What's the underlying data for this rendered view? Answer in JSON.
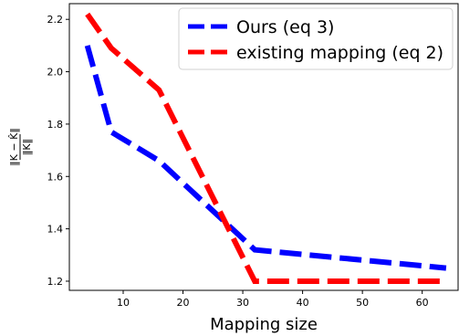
{
  "chart_data": {
    "type": "line",
    "xlabel": "Mapping size",
    "ylabel": {
      "numerator": "‖K − K̂‖",
      "denominator": "‖K‖"
    },
    "xlim": [
      1,
      66
    ],
    "ylim": [
      1.165,
      2.26
    ],
    "xticks": [
      10,
      20,
      30,
      40,
      50,
      60
    ],
    "yticks": [
      1.2,
      1.4,
      1.6,
      1.8,
      2.0,
      2.2
    ],
    "grid": false,
    "legend_position": "upper-right",
    "series": [
      {
        "name": "Ours (eq 3)",
        "color": "#0000ff",
        "x": [
          4,
          8,
          16,
          32,
          64
        ],
        "y": [
          2.1,
          1.77,
          1.66,
          1.32,
          1.25
        ]
      },
      {
        "name": "existing mapping (eq 2)",
        "color": "#ff0000",
        "x": [
          4,
          8,
          16,
          32,
          64
        ],
        "y": [
          2.22,
          2.09,
          1.93,
          1.2,
          1.2
        ]
      }
    ]
  }
}
